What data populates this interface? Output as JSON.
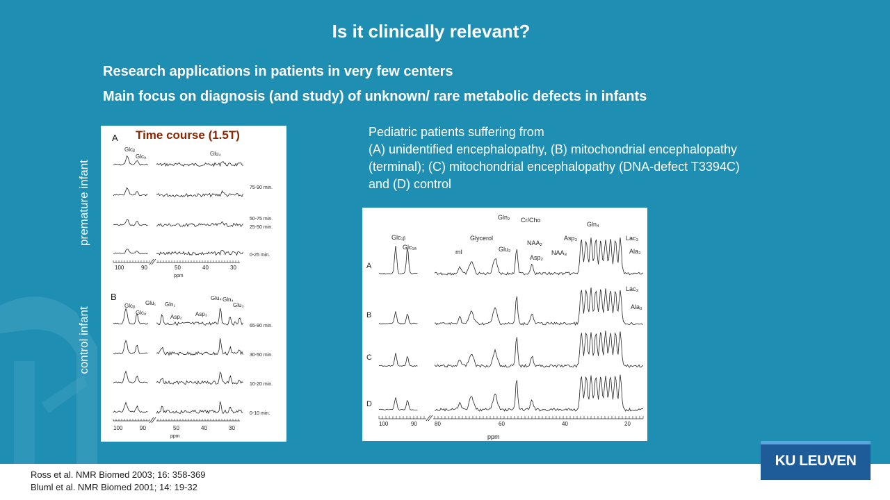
{
  "slide": {
    "title": "Is it clinically relevant?",
    "bullets": [
      "Research applications in patients in very few centers",
      "Main focus on diagnosis (and study) of unknown/ rare metabolic defects in infants"
    ],
    "description": [
      "Pediatric patients suffering from",
      "(A) unidentified encephalopathy, (B) mitochondrial encephalopathy",
      "(terminal); (C) mitochondrial encephalopathy (DNA-defect T3394C)",
      "and (D) control"
    ],
    "references": [
      "Ross et al. NMR Biomed 2003; 16: 358-369",
      "Bluml et al. NMR Biomed 2001; 14: 19-32"
    ],
    "logo": "KU LEUVEN",
    "colors": {
      "background": "#1f8eb3",
      "logo": "#1e5c99",
      "figure_title": "#8b2500"
    }
  },
  "left_figure": {
    "title": "Time course (1.5T)",
    "side_labels": [
      "premature infant",
      "control infant"
    ],
    "panel_a": {
      "letter": "A",
      "peak_labels": [
        "Glcᵦ",
        "Glcₐ",
        "Glu₄"
      ],
      "traces": [
        "75-90 min.",
        "50-75 min.",
        "25-50 min.",
        "0-25 min."
      ],
      "axis_ticks": [
        "100",
        "90",
        "50",
        "40",
        "30"
      ],
      "axis_label": "ppm"
    },
    "panel_b": {
      "letter": "B",
      "peak_labels": [
        "Glcᵦ",
        "Glcₐ",
        "Glu₁",
        "Gln₁",
        "Asp₂",
        "Asp₃",
        "Glu₄",
        "Gln₄",
        "Glu₃"
      ],
      "traces": [
        "65-90 min.",
        "30-50 min.",
        "10-20 min.",
        "0-10 min."
      ],
      "axis_ticks": [
        "100",
        "90",
        "50",
        "40",
        "30"
      ],
      "axis_label": "ppm"
    }
  },
  "right_figure": {
    "peak_labels": [
      "Glc₁ᵦ",
      "Glc₁ₐ",
      "mI",
      "Glycerol",
      "Glu₂",
      "Gln₂",
      "Cr/Cho",
      "NAA₂",
      "Asp₂",
      "Asp₃",
      "NAA₃",
      "Gln₄",
      "Lac₃",
      "Ala₃",
      "Lac₃",
      "Ala₃"
    ],
    "rows": [
      "A",
      "B",
      "C",
      "D"
    ],
    "axis_ticks": [
      "100",
      "90",
      "80",
      "60",
      "40",
      "20"
    ],
    "axis_label": "ppm"
  }
}
